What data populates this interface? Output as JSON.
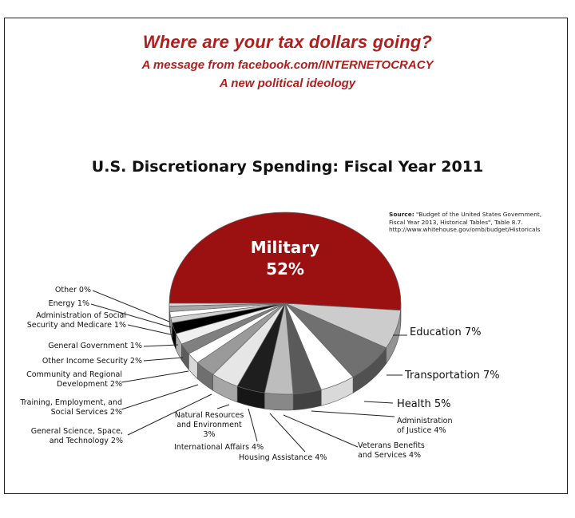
{
  "header": {
    "title": "Where are your tax dollars going?",
    "subtitle": "A message from facebook.com/INTERNETOCRACY",
    "tagline": "A new political ideology"
  },
  "source": {
    "label": "Source:",
    "text_line1": "\"Budget of the United States Government,",
    "text_line2": "Fiscal Year 2013, Historical Tables\", Table 8.7.",
    "text_line3": "http://www.whitehouse.gov/omb/budget/Historicals"
  },
  "chart_data": {
    "type": "pie",
    "title": "U.S. Discretionary Spending: Fiscal Year 2011",
    "unit": "%",
    "slices": [
      {
        "name": "Military",
        "value": 52,
        "label": "Military",
        "value_label": "52%",
        "color": "#9b1111"
      },
      {
        "name": "Education",
        "value": 7,
        "label": "Education  7%",
        "color": "#cccccc"
      },
      {
        "name": "Transportation",
        "value": 7,
        "label": "Transportation  7%",
        "color": "#707070"
      },
      {
        "name": "Health",
        "value": 5,
        "label": "Health  5%",
        "color": "#ffffff"
      },
      {
        "name": "Administration of Justice",
        "value": 4,
        "label": "Administration\nof Justice  4%",
        "color": "#5a5a5a"
      },
      {
        "name": "Veterans Benefits and Services",
        "value": 4,
        "label": "Veterans Benefits\nand Services  4%",
        "color": "#bdbdbd"
      },
      {
        "name": "Housing Assistance",
        "value": 4,
        "label": "Housing Assistance  4%",
        "color": "#1e1e1e"
      },
      {
        "name": "International Affairs",
        "value": 4,
        "label": "International Affairs  4%",
        "color": "#e6e6e6"
      },
      {
        "name": "Natural Resources and Environment",
        "value": 3,
        "label": "Natural Resources\nand  Environment\n3%",
        "color": "#9a9a9a"
      },
      {
        "name": "General Science, Space, and Technology",
        "value": 2,
        "label": "General Science, Space,\nand Technology  2%",
        "color": "#ffffff"
      },
      {
        "name": "Training, Employment, and Social Services",
        "value": 2,
        "label": "Training, Employment, and\nSocial Services  2%",
        "color": "#808080"
      },
      {
        "name": "Community and Regional Development",
        "value": 2,
        "label": "Community and Regional\nDevelopment  2%",
        "color": "#f0f0f0"
      },
      {
        "name": "Other Income Security",
        "value": 2,
        "label": "Other Income Security  2%",
        "color": "#000000"
      },
      {
        "name": "General Government",
        "value": 1,
        "label": "General Government  1%",
        "color": "#d0d0d0"
      },
      {
        "name": "Administration of Social Security and Medicare",
        "value": 1,
        "label": "Administration of Social\nSecurity and Medicare  1%",
        "color": "#ffffff"
      },
      {
        "name": "Energy",
        "value": 1,
        "label": "Energy  1%",
        "color": "#a6a6a6"
      },
      {
        "name": "Other",
        "value": 0.5,
        "label": "Other  0%",
        "color": "#dddddd"
      }
    ]
  }
}
